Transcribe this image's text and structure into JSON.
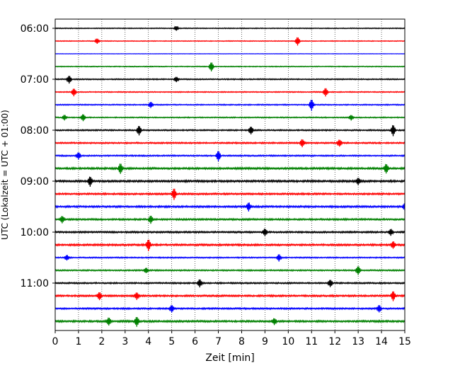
{
  "chart_data": {
    "type": "line",
    "title": "",
    "xlabel": "Zeit  [min]",
    "ylabel": "UTC (Lokalzeit = UTC + 01:00)",
    "xlim": [
      0,
      15
    ],
    "x_ticks": [
      "0",
      "1",
      "2",
      "3",
      "4",
      "5",
      "6",
      "7",
      "8",
      "9",
      "10",
      "11",
      "12",
      "13",
      "14",
      "15"
    ],
    "y_ticks": [
      {
        "label": "06:00",
        "trace": 0
      },
      {
        "label": "07:00",
        "trace": 4
      },
      {
        "label": "08:00",
        "trace": 8
      },
      {
        "label": "09:00",
        "trace": 12
      },
      {
        "label": "10:00",
        "trace": 16
      },
      {
        "label": "11:00",
        "trace": 20
      }
    ],
    "grid": "vertical dotted",
    "colors": [
      "#000000",
      "#ff0000",
      "#0000ff",
      "#008000"
    ],
    "traces": [
      {
        "start": "06:00",
        "color": "#000000",
        "noise": 0.35,
        "events": [
          [
            5.2,
            0.5
          ]
        ]
      },
      {
        "start": "06:15",
        "color": "#ff0000",
        "noise": 0.3,
        "events": [
          [
            1.8,
            0.6
          ],
          [
            10.4,
            1.0
          ]
        ]
      },
      {
        "start": "06:30",
        "color": "#0000ff",
        "noise": 0.15,
        "events": []
      },
      {
        "start": "06:45",
        "color": "#008000",
        "noise": 0.35,
        "events": [
          [
            6.7,
            1.1
          ]
        ]
      },
      {
        "start": "07:00",
        "color": "#000000",
        "noise": 0.45,
        "events": [
          [
            0.6,
            0.9
          ],
          [
            5.2,
            0.6
          ]
        ]
      },
      {
        "start": "07:15",
        "color": "#ff0000",
        "noise": 0.4,
        "events": [
          [
            0.8,
            0.9
          ],
          [
            11.6,
            1.0
          ]
        ]
      },
      {
        "start": "07:30",
        "color": "#0000ff",
        "noise": 0.45,
        "events": [
          [
            4.1,
            0.7
          ],
          [
            11.0,
            1.3
          ]
        ]
      },
      {
        "start": "07:45",
        "color": "#008000",
        "noise": 0.45,
        "events": [
          [
            0.4,
            0.6
          ],
          [
            1.2,
            0.8
          ],
          [
            12.7,
            0.6
          ]
        ]
      },
      {
        "start": "08:00",
        "color": "#000000",
        "noise": 0.55,
        "events": [
          [
            3.6,
            1.1
          ],
          [
            8.4,
            0.9
          ],
          [
            14.5,
            1.3
          ]
        ]
      },
      {
        "start": "08:15",
        "color": "#ff0000",
        "noise": 0.6,
        "events": [
          [
            10.6,
            0.9
          ],
          [
            12.2,
            0.8
          ]
        ]
      },
      {
        "start": "08:30",
        "color": "#0000ff",
        "noise": 0.55,
        "events": [
          [
            1.0,
            0.8
          ],
          [
            7.0,
            1.2
          ]
        ]
      },
      {
        "start": "08:45",
        "color": "#008000",
        "noise": 0.8,
        "events": [
          [
            2.8,
            1.2
          ],
          [
            14.2,
            1.1
          ]
        ]
      },
      {
        "start": "09:00",
        "color": "#000000",
        "noise": 0.8,
        "events": [
          [
            1.5,
            1.1
          ],
          [
            13.0,
            0.8
          ]
        ]
      },
      {
        "start": "09:15",
        "color": "#ff0000",
        "noise": 0.7,
        "events": [
          [
            5.1,
            1.3
          ]
        ]
      },
      {
        "start": "09:30",
        "color": "#0000ff",
        "noise": 0.75,
        "events": [
          [
            8.3,
            1.0
          ],
          [
            15.0,
            0.8
          ]
        ]
      },
      {
        "start": "09:45",
        "color": "#008000",
        "noise": 0.7,
        "events": [
          [
            0.3,
            0.8
          ],
          [
            4.1,
            0.9
          ]
        ]
      },
      {
        "start": "10:00",
        "color": "#000000",
        "noise": 0.7,
        "events": [
          [
            9.0,
            0.8
          ],
          [
            14.4,
            0.7
          ]
        ]
      },
      {
        "start": "10:15",
        "color": "#ff0000",
        "noise": 0.75,
        "events": [
          [
            4.0,
            1.3
          ],
          [
            14.5,
            0.8
          ]
        ]
      },
      {
        "start": "10:30",
        "color": "#0000ff",
        "noise": 0.5,
        "events": [
          [
            0.5,
            0.6
          ],
          [
            9.6,
            0.8
          ]
        ]
      },
      {
        "start": "10:45",
        "color": "#008000",
        "noise": 0.55,
        "events": [
          [
            3.9,
            0.6
          ],
          [
            13.0,
            1.0
          ]
        ]
      },
      {
        "start": "11:00",
        "color": "#000000",
        "noise": 0.6,
        "events": [
          [
            6.2,
            0.9
          ],
          [
            11.8,
            0.8
          ]
        ]
      },
      {
        "start": "11:15",
        "color": "#ff0000",
        "noise": 0.7,
        "events": [
          [
            1.9,
            0.9
          ],
          [
            3.5,
            0.8
          ],
          [
            14.5,
            1.1
          ]
        ]
      },
      {
        "start": "11:30",
        "color": "#0000ff",
        "noise": 0.65,
        "events": [
          [
            5.0,
            0.8
          ],
          [
            13.9,
            0.8
          ]
        ]
      },
      {
        "start": "11:45",
        "color": "#008000",
        "noise": 0.75,
        "events": [
          [
            2.3,
            0.9
          ],
          [
            3.5,
            1.1
          ],
          [
            9.4,
            0.7
          ]
        ]
      }
    ]
  }
}
